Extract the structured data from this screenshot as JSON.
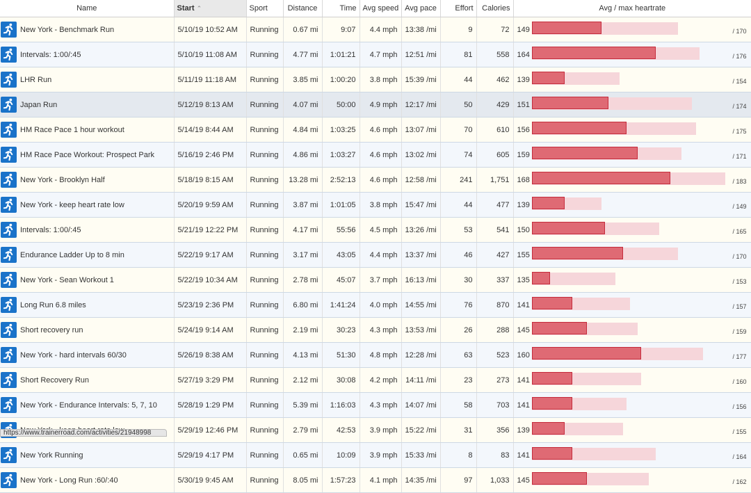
{
  "columns": {
    "name": "Name",
    "start": "Start",
    "sport": "Sport",
    "distance": "Distance",
    "time": "Time",
    "avg_speed": "Avg speed",
    "avg_pace": "Avg pace",
    "effort": "Effort",
    "calories": "Calories",
    "heartrate": "Avg / max heartrate"
  },
  "icon": "running-person-icon",
  "colors": {
    "icon_bg": "#1a73c9",
    "bar_avg": "#df6a74",
    "bar_avg_border": "#c42b3c",
    "bar_max": "#f6d6da"
  },
  "heartrate_scale": [
    130,
    185
  ],
  "activities": [
    {
      "name": "New York - Benchmark Run",
      "start": "5/10/19 10:52 AM",
      "sport": "Running",
      "distance": "0.67 mi",
      "time": "9:07",
      "avg_speed": "4.4 mph",
      "avg_pace": "13:38 /mi",
      "effort": "9",
      "calories": "72",
      "avg_hr": "149",
      "max_hr": "/ 170"
    },
    {
      "name": "Intervals: 1:00/:45",
      "start": "5/10/19 11:08 AM",
      "sport": "Running",
      "distance": "4.77 mi",
      "time": "1:01:21",
      "avg_speed": "4.7 mph",
      "avg_pace": "12:51 /mi",
      "effort": "81",
      "calories": "558",
      "avg_hr": "164",
      "max_hr": "/ 176"
    },
    {
      "name": "LHR Run",
      "start": "5/11/19 11:18 AM",
      "sport": "Running",
      "distance": "3.85 mi",
      "time": "1:00:20",
      "avg_speed": "3.8 mph",
      "avg_pace": "15:39 /mi",
      "effort": "44",
      "calories": "462",
      "avg_hr": "139",
      "max_hr": "/ 154"
    },
    {
      "name": "Japan Run",
      "start": "5/12/19 8:13 AM",
      "sport": "Running",
      "distance": "4.07 mi",
      "time": "50:00",
      "avg_speed": "4.9 mph",
      "avg_pace": "12:17 /mi",
      "effort": "50",
      "calories": "429",
      "avg_hr": "151",
      "max_hr": "/ 174",
      "selected": true
    },
    {
      "name": "HM Race Pace 1 hour workout",
      "start": "5/14/19 8:44 AM",
      "sport": "Running",
      "distance": "4.84 mi",
      "time": "1:03:25",
      "avg_speed": "4.6 mph",
      "avg_pace": "13:07 /mi",
      "effort": "70",
      "calories": "610",
      "avg_hr": "156",
      "max_hr": "/ 175"
    },
    {
      "name": "HM Race Pace Workout: Prospect Park",
      "start": "5/16/19 2:46 PM",
      "sport": "Running",
      "distance": "4.86 mi",
      "time": "1:03:27",
      "avg_speed": "4.6 mph",
      "avg_pace": "13:02 /mi",
      "effort": "74",
      "calories": "605",
      "avg_hr": "159",
      "max_hr": "/ 171"
    },
    {
      "name": "New York - Brooklyn Half",
      "start": "5/18/19 8:15 AM",
      "sport": "Running",
      "distance": "13.28 mi",
      "time": "2:52:13",
      "avg_speed": "4.6 mph",
      "avg_pace": "12:58 /mi",
      "effort": "241",
      "calories": "1,751",
      "avg_hr": "168",
      "max_hr": "/ 183"
    },
    {
      "name": "New York - keep heart rate low",
      "start": "5/20/19 9:59 AM",
      "sport": "Running",
      "distance": "3.87 mi",
      "time": "1:01:05",
      "avg_speed": "3.8 mph",
      "avg_pace": "15:47 /mi",
      "effort": "44",
      "calories": "477",
      "avg_hr": "139",
      "max_hr": "/ 149"
    },
    {
      "name": "Intervals: 1:00/:45",
      "start": "5/21/19 12:22 PM",
      "sport": "Running",
      "distance": "4.17 mi",
      "time": "55:56",
      "avg_speed": "4.5 mph",
      "avg_pace": "13:26 /mi",
      "effort": "53",
      "calories": "541",
      "avg_hr": "150",
      "max_hr": "/ 165"
    },
    {
      "name": "Endurance Ladder Up to 8 min",
      "start": "5/22/19 9:17 AM",
      "sport": "Running",
      "distance": "3.17 mi",
      "time": "43:05",
      "avg_speed": "4.4 mph",
      "avg_pace": "13:37 /mi",
      "effort": "46",
      "calories": "427",
      "avg_hr": "155",
      "max_hr": "/ 170"
    },
    {
      "name": "New York - Sean Workout 1",
      "start": "5/22/19 10:34 AM",
      "sport": "Running",
      "distance": "2.78 mi",
      "time": "45:07",
      "avg_speed": "3.7 mph",
      "avg_pace": "16:13 /mi",
      "effort": "30",
      "calories": "337",
      "avg_hr": "135",
      "max_hr": "/ 153"
    },
    {
      "name": "Long Run 6.8 miles",
      "start": "5/23/19 2:36 PM",
      "sport": "Running",
      "distance": "6.80 mi",
      "time": "1:41:24",
      "avg_speed": "4.0 mph",
      "avg_pace": "14:55 /mi",
      "effort": "76",
      "calories": "870",
      "avg_hr": "141",
      "max_hr": "/ 157"
    },
    {
      "name": "Short recovery run",
      "start": "5/24/19 9:14 AM",
      "sport": "Running",
      "distance": "2.19 mi",
      "time": "30:23",
      "avg_speed": "4.3 mph",
      "avg_pace": "13:53 /mi",
      "effort": "26",
      "calories": "288",
      "avg_hr": "145",
      "max_hr": "/ 159"
    },
    {
      "name": "New York - hard intervals 60/30",
      "start": "5/26/19 8:38 AM",
      "sport": "Running",
      "distance": "4.13 mi",
      "time": "51:30",
      "avg_speed": "4.8 mph",
      "avg_pace": "12:28 /mi",
      "effort": "63",
      "calories": "523",
      "avg_hr": "160",
      "max_hr": "/ 177"
    },
    {
      "name": "Short Recovery Run",
      "start": "5/27/19 3:29 PM",
      "sport": "Running",
      "distance": "2.12 mi",
      "time": "30:08",
      "avg_speed": "4.2 mph",
      "avg_pace": "14:11 /mi",
      "effort": "23",
      "calories": "273",
      "avg_hr": "141",
      "max_hr": "/ 160"
    },
    {
      "name": "New York - Endurance Intervals: 5, 7, 10",
      "start": "5/28/19 1:29 PM",
      "sport": "Running",
      "distance": "5.39 mi",
      "time": "1:16:03",
      "avg_speed": "4.3 mph",
      "avg_pace": "14:07 /mi",
      "effort": "58",
      "calories": "703",
      "avg_hr": "141",
      "max_hr": "/ 156"
    },
    {
      "name": "New York - keep heart rate low",
      "start": "5/29/19 12:46 PM",
      "sport": "Running",
      "distance": "2.79 mi",
      "time": "42:53",
      "avg_speed": "3.9 mph",
      "avg_pace": "15:22 /mi",
      "effort": "31",
      "calories": "356",
      "avg_hr": "139",
      "max_hr": "/ 155"
    },
    {
      "name": "New York Running",
      "start": "5/29/19 4:17 PM",
      "sport": "Running",
      "distance": "0.65 mi",
      "time": "10:09",
      "avg_speed": "3.9 mph",
      "avg_pace": "15:33 /mi",
      "effort": "8",
      "calories": "83",
      "avg_hr": "141",
      "max_hr": "/ 164"
    },
    {
      "name": "New York - Long Run :60/:40",
      "start": "5/30/19 9:45 AM",
      "sport": "Running",
      "distance": "8.05 mi",
      "time": "1:57:23",
      "avg_speed": "4.1 mph",
      "avg_pace": "14:35 /mi",
      "effort": "97",
      "calories": "1,033",
      "avg_hr": "145",
      "max_hr": "/ 162"
    }
  ],
  "status_bar": {
    "url": "https://www.trainerroad.com/activities/21948998"
  }
}
